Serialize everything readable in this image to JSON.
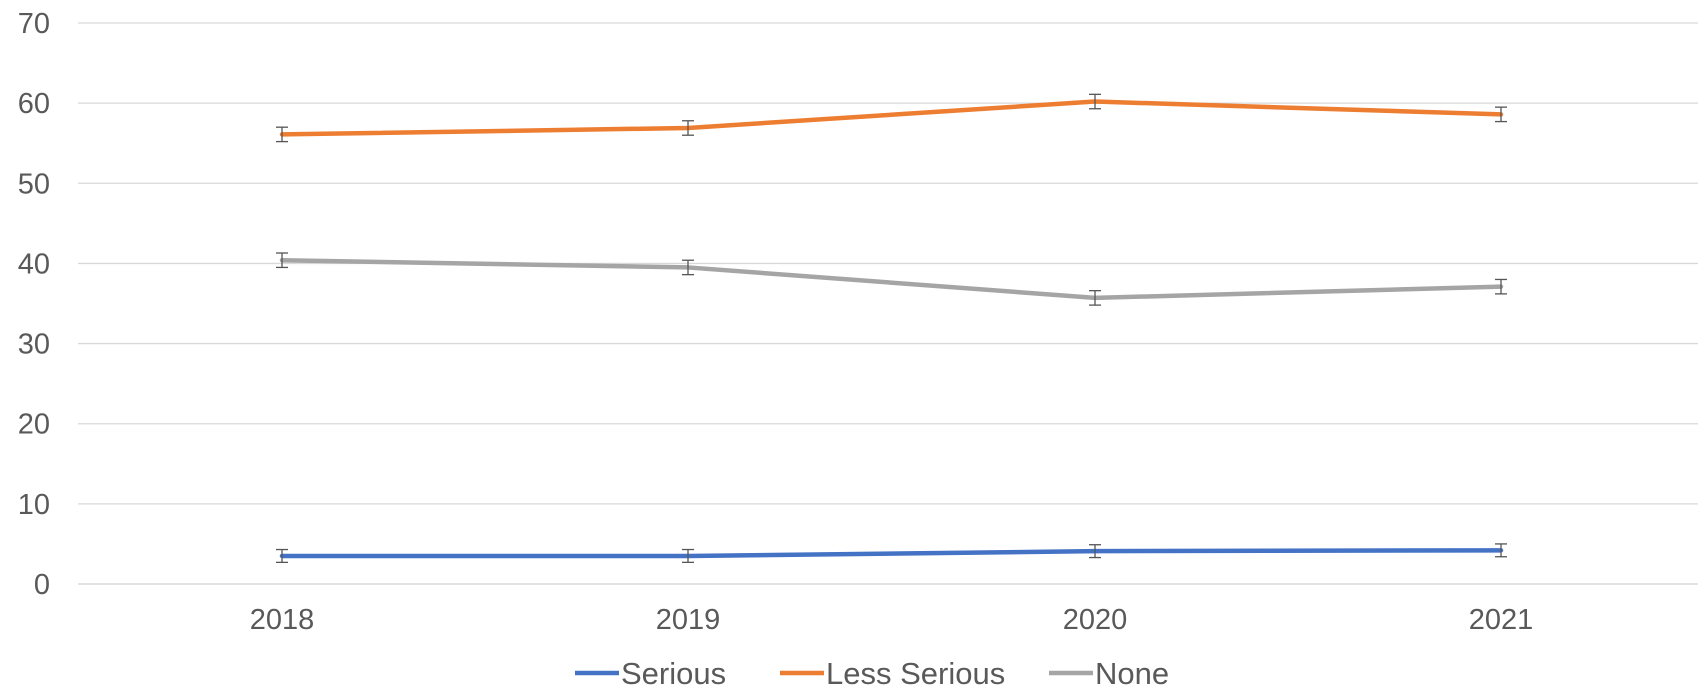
{
  "chart_data": {
    "type": "line",
    "title": "",
    "xlabel": "",
    "ylabel": "",
    "categories": [
      "2018",
      "2019",
      "2020",
      "2021"
    ],
    "ylim": [
      0,
      70
    ],
    "yticks": [
      0,
      10,
      20,
      30,
      40,
      50,
      60,
      70
    ],
    "grid": true,
    "error_bars": true,
    "legend_position": "bottom",
    "series": [
      {
        "name": "Serious",
        "color": "#4472C4",
        "values": [
          3.5,
          3.5,
          4.1,
          4.2
        ],
        "errors": [
          0.8,
          0.8,
          0.8,
          0.8
        ]
      },
      {
        "name": "Less Serious",
        "color": "#ED7D31",
        "values": [
          56.1,
          56.9,
          60.2,
          58.6
        ],
        "errors": [
          0.9,
          0.9,
          0.9,
          0.9
        ]
      },
      {
        "name": "None",
        "color": "#A5A5A5",
        "values": [
          40.4,
          39.5,
          35.7,
          37.1
        ],
        "errors": [
          0.9,
          0.9,
          0.9,
          0.9
        ]
      }
    ]
  }
}
